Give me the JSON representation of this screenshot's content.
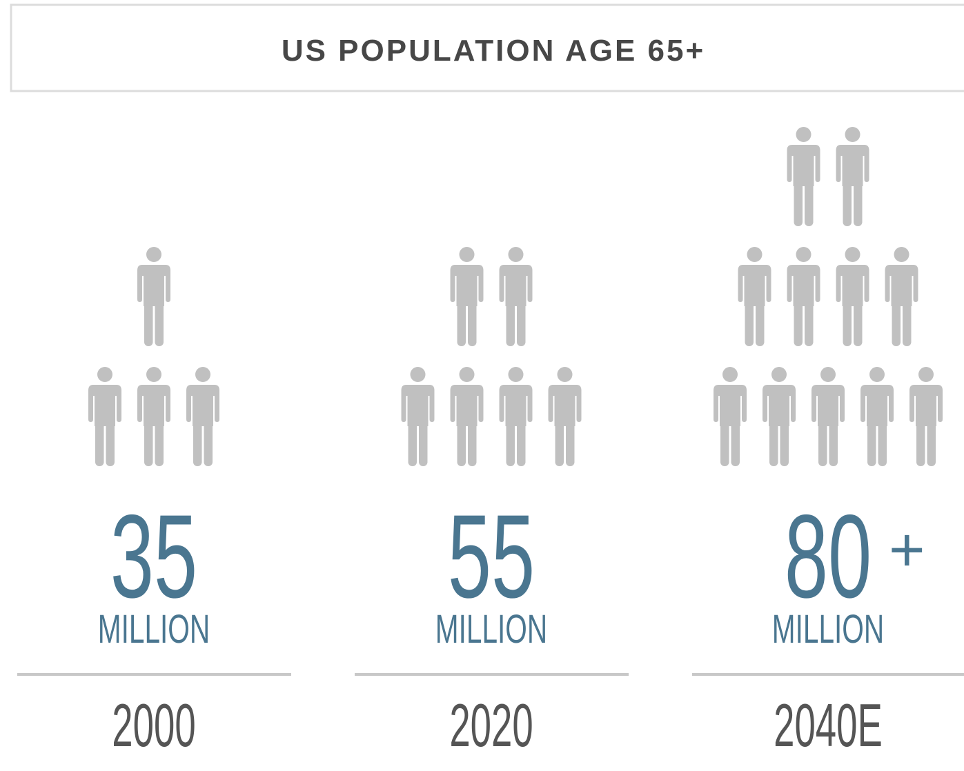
{
  "title": "US POPULATION AGE 65+",
  "columns": [
    {
      "value": "35",
      "unit": "MILLION",
      "year": "2000"
    },
    {
      "value": "55",
      "unit": "MILLION",
      "year": "2020"
    },
    {
      "value": "80",
      "suffix": "+",
      "unit": "MILLION",
      "year": "2040E"
    }
  ]
}
